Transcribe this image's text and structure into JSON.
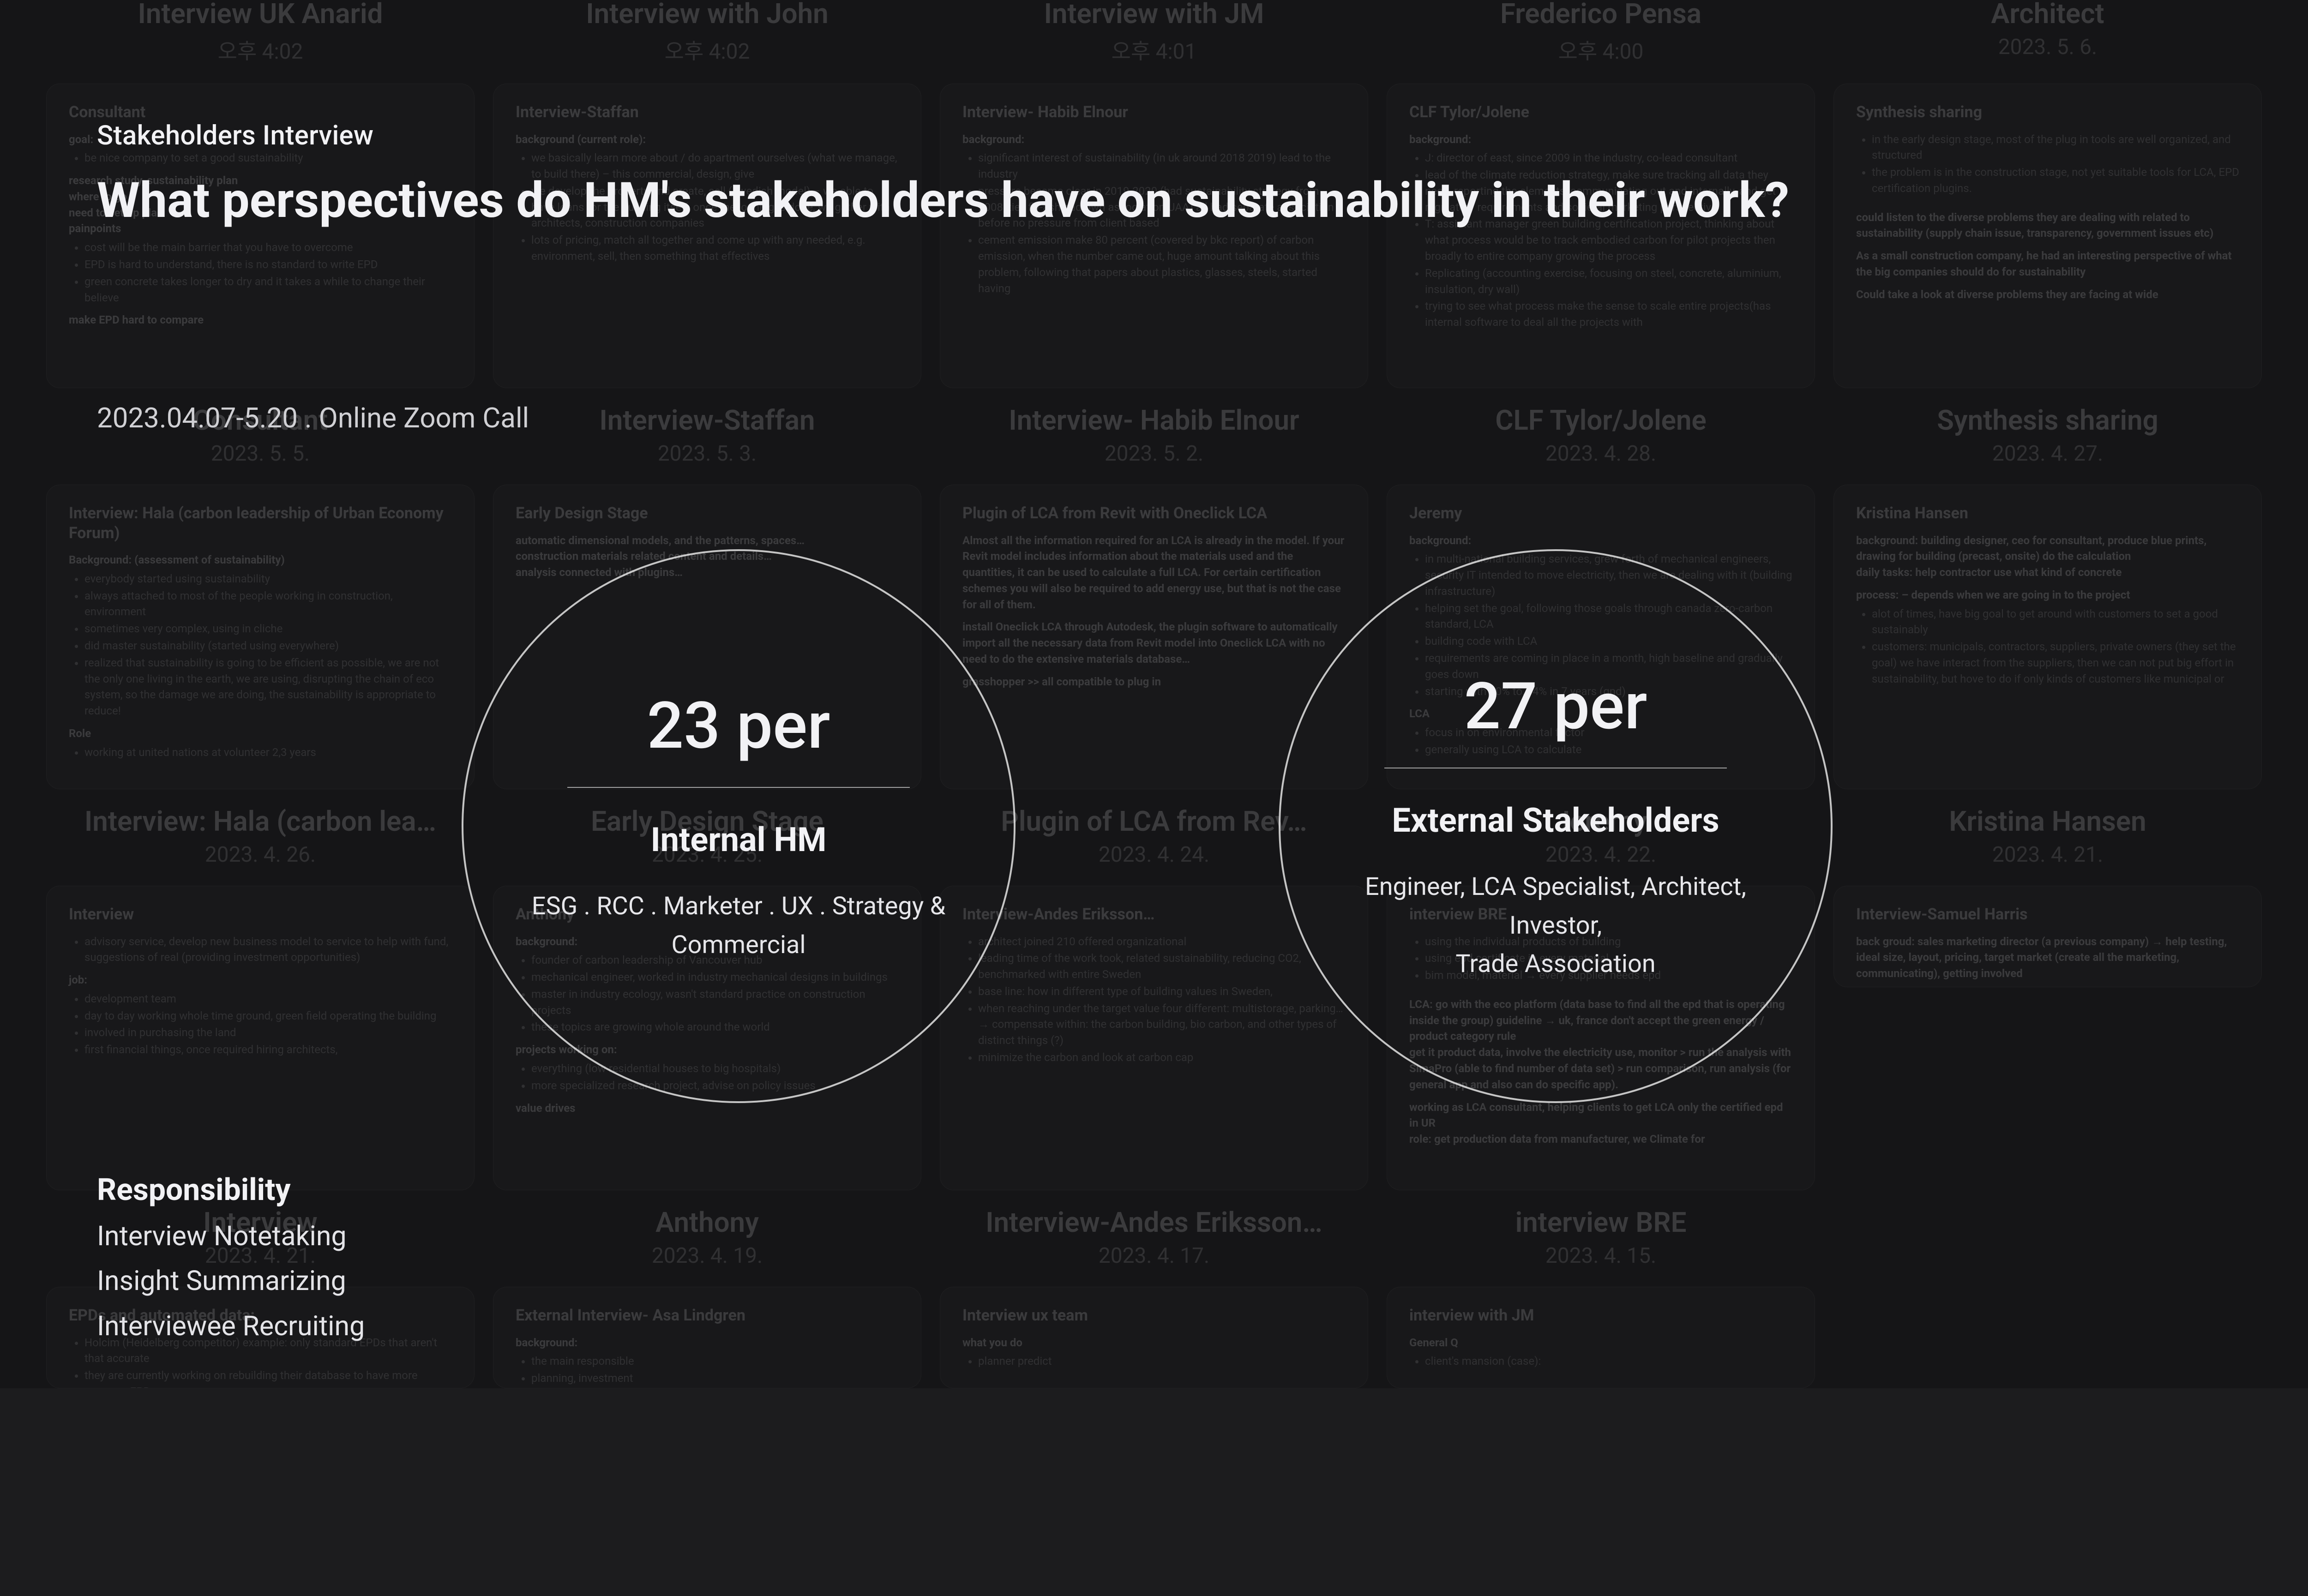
{
  "top_tiles": [
    {
      "title": "Interview UK Anarid",
      "date": "오후 4:02"
    },
    {
      "title": "Interview with John",
      "date": "오후 4:02"
    },
    {
      "title": "Interview with JM",
      "date": "오후 4:01"
    },
    {
      "title": "Frederico Pensa",
      "date": "오후 4:00"
    },
    {
      "title": "Architect",
      "date": "2023. 5. 6."
    }
  ],
  "tiles": [
    {
      "title": "Consultant",
      "date": "2023. 5. 5.",
      "card_title": "Consultant",
      "body": "goal:\n- be nice company to set a good sustainability\nresearch study, sustainability plan\nwhere to go\nneed to set up plan\npainpoints\n- cost will be the main barrier that you have to overcome\n- EPD is hard to understand, there is no standard to write EPD\n- green concrete takes longer to dry and it takes a while to change their believe\nmake EPD hard to compare"
    },
    {
      "title": "Interview-Staffan",
      "date": "2023. 5. 3.",
      "card_title": "Interview-Staffan",
      "body": "background (current role):\n- we basically learn more about / do apartment ourselves (what we manage, to build there) – this commercial, design, give\n- we develop the property and create, sell (swedish model) – we able to have loans for the building itself, once the loaning is done, we gather with architects, construction companies\n- lots of pricing, match all together and come up with any needed, e.g. environment, sell, then something that effectives"
    },
    {
      "title": "Interview- Habib Elnour",
      "date": "2023. 5. 2.",
      "card_title": "Interview- Habib Elnour",
      "body": "background:\n- significant interest of sustainability (in uk around 2018 2019) lead to the industry\n- pressure became clear in 2019-2020 (had sustainability strategy from 2008, tier, fly-ash had own association UAA) all had separate association before no pressure from client based\n- cement emission make 80 percent (covered by bkc report) of carbon emission, when the number came out, huge amount talking about this problem, following that papers about plastics, glasses, steels, started having"
    },
    {
      "title": "CLF Tylor/Jolene",
      "date": "2023. 4. 28.",
      "card_title": "CLF Tylor/Jolene",
      "body": "background:\n- J: director of east, since 2009 in the industry, co-lead consultant\n- lead of the climate reduction strategy, make sure tracking all data they need, reporting the elements, communicating out and internally, and get regulatory requirements and societal marketing perspective\n- T: assistant manager green building certification project, thinking about what process would be to track embodied carbon for pilot projects then broadly to entire company growing the process\n- Replicating (accounting exercise, focusing on steel, concrete, aluminium, insulation, dry wall)\n- trying to see what process make the sense to scale entire projects(has internal software to deal all the projects with"
    },
    {
      "title": "Synthesis sharing",
      "date": "2023. 4. 27.",
      "card_title": "Synthesis sharing",
      "body": "- in the early design stage, most of the plug in tools are well organized, and structured\n- the problem is in the construction stage, not yet suitable tools for LCA, EPD certification plugins.\n\ncould listen to the diverse problems they are dealing with related to sustainability (supply chain issue, transparency, government issues etc)\n\nAs a small construction company, he had an interesting perspective of what the big companies should do for sustainability\n\nCould take a look at diverse problems they are facing at wide"
    },
    {
      "title": "Interview: Hala (carbon lea…",
      "date": "2023. 4. 26.",
      "card_title": "Interview: Hala (carbon leadership of Urban Economy Forum)",
      "body": "Background: (assessment of sustainability)\n- everybody started using sustainability\n- always attached to most of the people working in construction, environment\n- sometimes very complex, using in cliche\n- did master sustainability (started using everywhere)\n- realized that sustainability is going to be efficient as possible, we are not the only one living in the earth, we are using, disrupting the chain of eco system, so the damage we are doing, the sustainability is appropriate to reduce!\nRole\n- working at united nations at volunteer 2,3 years"
    },
    {
      "title": "Early Design Stage",
      "date": "2023. 4. 25.",
      "card_title": "Early Design Stage",
      "body": "automatic dimensional models, and the patterns, spaces…\nconstruction materials related content and details…\nanalysis connected with plugins…"
    },
    {
      "title": "Plugin of LCA from Rev…",
      "date": "2023. 4. 24.",
      "card_title": "Plugin of LCA from Revit with Oneclick LCA",
      "body": "Almost all the information required for an LCA is already in the model. If your Revit model includes information about the materials used and the quantities, it can be used to calculate a full LCA. For certain certification schemes you will also be required to add energy use, but that is not the case for all of them.\n\ninstall Oneclick LCA through Autodesk, the plugin software to automatically import all the necessary data from Revit model into Oneclick LCA with no need to do the extensive materials database…\n\ngrasshopper >> all compatible to plug in"
    },
    {
      "title": "Jeremy",
      "date": "2023. 4. 22.",
      "card_title": "Jeremy",
      "body": "background:\n- in multi-national building services, grew forth of mechanical engineers, security IT intended to move electricity, then we are dealing with it (building infrastructure)\n- helping set the goal, following those goals through canada zero-carbon standard, LCA\n- building code with LCA\n- requirements are coming in place in a month, high baseline and gradually goes down\n- starting with 10% to… 4% in 7 years (gnd)\nLCA\n- focus in on environmental factor\n- generally using LCA to calculate"
    },
    {
      "title": "Kristina Hansen",
      "date": "2023. 4. 21.",
      "card_title": "Kristina Hansen",
      "body": "background: building designer, ceo for consultant, produce blue prints, drawing for building (precast, onsite) do the calculation\ndaily tasks: help contractor use what kind of concrete\n\nprocess: – depends when we are going in to the project\n- alot of times, have big goal to get around with customers to set a good sustainably\n- customers: municipals, contractors, suppliers, private owners (they set the goal) we have interact from the suppliers, then we can not put big effort in sustainability, but hove to do if only kinds of customers like municipal or"
    },
    {
      "title": "Interview",
      "date": "2023. 4. 21.",
      "card_title": "Interview",
      "body": "- advisory service, develop new business model to service to help with fund, suggestions of real (providing investment opportunities)\njob:\n- development team\n- day to day working whole time ground, green field operating the building\n- involved in purchasing the land\n- first financial things, once required hiring architects,"
    },
    {
      "title": "Anthony",
      "date": "2023. 4. 19.",
      "card_title": "Anthony",
      "body": "background:\n- founder of carbon leadership of Vancouver hub\n- mechanical engineer, worked in industry mechanical designs in buildings\n- master in industry ecology, wasn't standard practice on construction projects\n- these topics are growing whole around the world\nprojects working on:\n- everything (low residential houses to big hospitals)\n- more specialized research project, advise on policy issues\nvalue drives"
    },
    {
      "title": "Interview-Andes Eriksson…",
      "date": "2023. 4. 17.",
      "card_title": "Interview-Andes Eriksson…",
      "body": "- architect joined 210 offered organizational\n- leading time of the work took, related sustainability, reducing CO2, benchmarked with entire Sweden\n- base line: how in different type of building values in Sweden,\n- when reaching under the target value four different: multistorage, parking… → compensate within: the carbon building, bio carbon, and other types of distinct things (?)\n- minimize the carbon and look at carbon cap"
    },
    {
      "title": "interview BRE",
      "date": "2023. 4. 15.",
      "card_title": "interview BRE",
      "body": "- using the individual products of building\n- using epd certificate in every material\n- bim model, material → every supplier needs epd\n\nLCA: go with the eco platform (data base to find all the epd that is operating inside the group) guideline → uk, france don't accept the green energy / product category rule\nget it product data, involve the electricity use, monitor > run the analysis with SimaPro (able to find number of data set) > run comparison, run analysis (for general app and also can do specific app).\n\nworking as LCA consultant, helping clients to get LCA only the certified epd in UR\nrole: get production data from manufacturer, we Climate for"
    },
    {
      "title": "Interview-Samuel Harris",
      "date": "",
      "card_title": "Interview-Samuel Harris",
      "body": "back groud: sales marketing director (a previous company) → help testing, ideal size, layout, pricing, target market (create all the marketing, communicating), getting involved"
    },
    {
      "title": "EPDs",
      "date": "",
      "card_title": "EPDs and automated data:",
      "body": "- Holcim (Heidelberg competitor) example: only standard EPDs that aren't that accurate\n- they are currently working on rebuilding their database to have more accurate EPDs\n→ so can improve, smart based EPDs created so"
    },
    {
      "title": "External Interview- Asa Lindgren",
      "date": "",
      "card_title": "External Interview- Asa Lindgren",
      "body": "background:\n- the main responsible\n- planning, investment"
    },
    {
      "title": "Interview ux team",
      "date": "",
      "card_title": "Interview ux team",
      "body": "what you do\n- planner predict"
    },
    {
      "title": "interview with JM",
      "date": "",
      "card_title": "interview with JM",
      "body": "General Q\n- client's mansion (case):"
    }
  ],
  "overlay": {
    "kicker": "Stakeholders Interview",
    "headline": "What perspectives do HM's stakeholders have on sustainability in their work?",
    "meta": "2023.04.07-5.20 .  Online Zoom Call",
    "resp_h": "Responsibility",
    "resp_items": [
      "Interview Notetaking",
      "Insight Summarizing",
      "Interviewee Recruiting"
    ],
    "circle_left": {
      "big": "23 per",
      "sub": "Internal HM",
      "desc": "ESG . RCC . Marketer . UX . Strategy & Commercial"
    },
    "circle_right": {
      "big": "27 per",
      "sub": "External Stakeholders",
      "desc": "Engineer, LCA Specialist, Architect, Investor,\nTrade Association"
    }
  }
}
